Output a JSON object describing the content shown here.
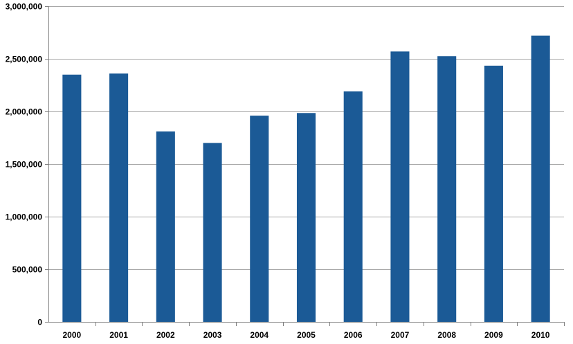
{
  "chart_data": {
    "type": "bar",
    "title": "",
    "xlabel": "",
    "ylabel": "",
    "categories": [
      "2000",
      "2001",
      "2002",
      "2003",
      "2004",
      "2005",
      "2006",
      "2007",
      "2008",
      "2009",
      "2010"
    ],
    "values": [
      2350000,
      2360000,
      1810000,
      1700000,
      1960000,
      1985000,
      2190000,
      2570000,
      2525000,
      2435000,
      2720000
    ],
    "ylim": [
      0,
      3000000
    ],
    "yticks": [
      0,
      500000,
      1000000,
      1500000,
      2000000,
      2500000,
      3000000
    ],
    "ytick_labels": [
      "0",
      "500,000",
      "1,000,000",
      "1,500,000",
      "2,000,000",
      "2,500,000",
      "3,000,000"
    ],
    "grid": true,
    "legend": "none",
    "bar_color": "#1b5a96",
    "grid_color": "#a6a6a6"
  }
}
